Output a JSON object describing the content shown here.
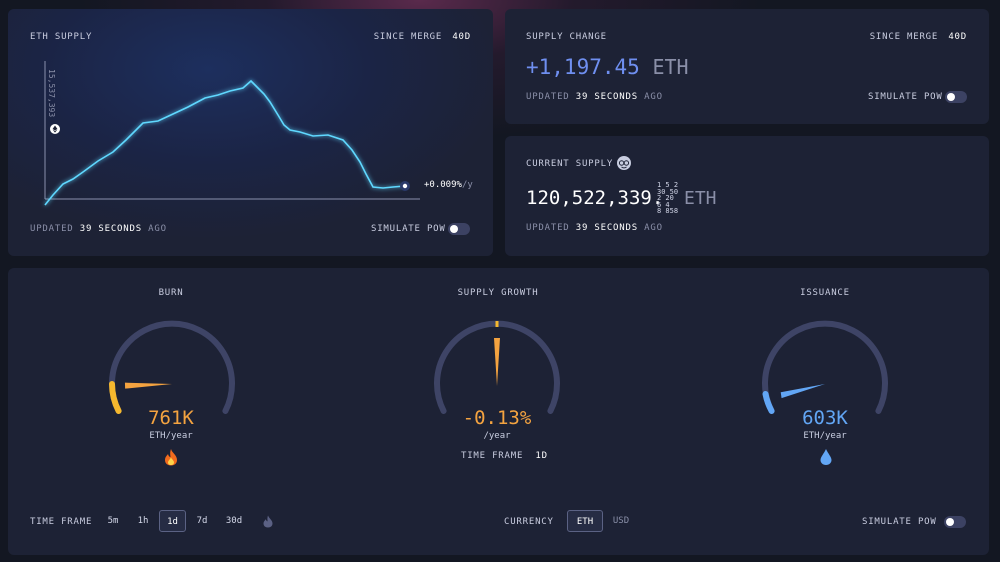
{
  "eth_supply": {
    "title": "ETH SUPPLY",
    "since_label": "SINCE MERGE",
    "since_value": "40d",
    "y_tick": "15,537,393",
    "rate": "+0.009%",
    "rate_unit": "/y",
    "updated_prefix": "UPDATED",
    "updated_value": "39 SECONDS",
    "updated_suffix": "AGO",
    "simulate_label": "SIMULATE PoW",
    "simulate_on": false
  },
  "supply_change": {
    "title": "SUPPLY CHANGE",
    "since_label": "SINCE MERGE",
    "since_value": "40d",
    "value": "+1,197.45",
    "unit": "ETH",
    "updated_prefix": "UPDATED",
    "updated_value": "39 SECONDS",
    "updated_suffix": "AGO",
    "simulate_label": "SIMULATE PoW",
    "simulate_on": false
  },
  "current_supply": {
    "title": "CURRENT SUPPLY",
    "icon": "nerd-face-icon",
    "value_main": "120,522,339.",
    "decimals_lines": [
      "1 5 2",
      "30 50",
      "2 20",
      "6 4",
      "8 858"
    ],
    "unit": "ETH",
    "updated_prefix": "UPDATED",
    "updated_value": "39 SECONDS",
    "updated_suffix": "AGO"
  },
  "gauges": {
    "burn": {
      "title": "BURN",
      "value": "761K",
      "unit": "ETH/year",
      "icon": "fire-icon",
      "color": "#f4a340"
    },
    "growth": {
      "title": "SUPPLY GROWTH",
      "value": "-0.13%",
      "unit": "/year",
      "timeframe_label": "TIME FRAME",
      "timeframe_value": "1d",
      "color": "#f4a340"
    },
    "issuance": {
      "title": "ISSUANCE",
      "value": "603K",
      "unit": "ETH/year",
      "icon": "droplet-icon",
      "color": "#62a6f5"
    }
  },
  "footer": {
    "timeframe_label": "TIME FRAME",
    "timeframes": [
      "5m",
      "1h",
      "1d",
      "7d",
      "30d"
    ],
    "active_timeframe": "1d",
    "merge_icon": "fire-icon",
    "currency_label": "CURRENCY",
    "currencies": [
      "ETH",
      "USD"
    ],
    "active_currency": "ETH",
    "simulate_label": "SIMULATE PoW",
    "simulate_on": false
  },
  "colors": {
    "accent_line": "#5fd8ff",
    "accent_blue": "#6f8ff0",
    "orange": "#f4a340",
    "blue": "#62a6f5"
  }
}
